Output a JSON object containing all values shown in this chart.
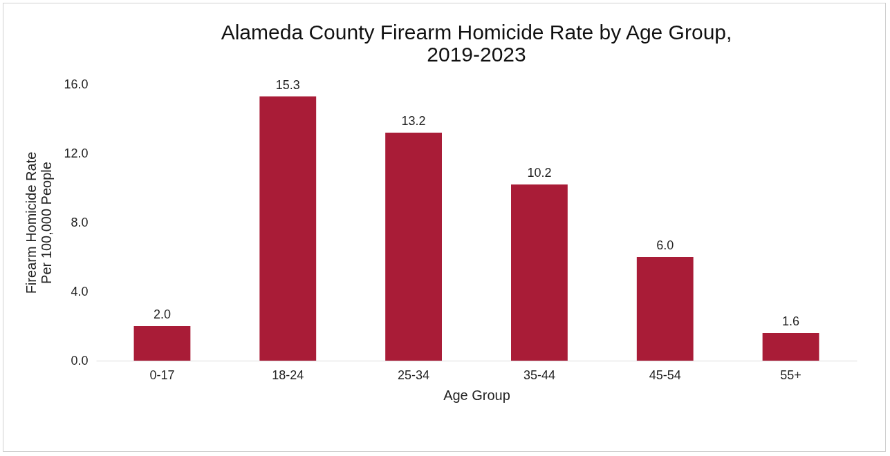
{
  "chart_data": {
    "type": "bar",
    "title": "Alameda County Firearm Homicide Rate by Age Group,\n2019-2023",
    "xlabel": "Age Group",
    "ylabel": "Firearm Homicide Rate\nPer 100,000 People",
    "categories": [
      "0-17",
      "18-24",
      "25-34",
      "35-44",
      "45-54",
      "55+"
    ],
    "values": [
      2.0,
      15.3,
      13.2,
      10.2,
      6.0,
      1.6
    ],
    "value_labels": [
      "2.0",
      "15.3",
      "13.2",
      "10.2",
      "6.0",
      "1.6"
    ],
    "color": "#a91c37",
    "ylim": [
      0,
      16
    ],
    "yticks": [
      {
        "value": 0,
        "label": "0.0"
      },
      {
        "value": 4,
        "label": "4.0"
      },
      {
        "value": 8,
        "label": "8.0"
      },
      {
        "value": 12,
        "label": "12.0"
      },
      {
        "value": 16,
        "label": "16.0"
      }
    ],
    "grid": false
  }
}
